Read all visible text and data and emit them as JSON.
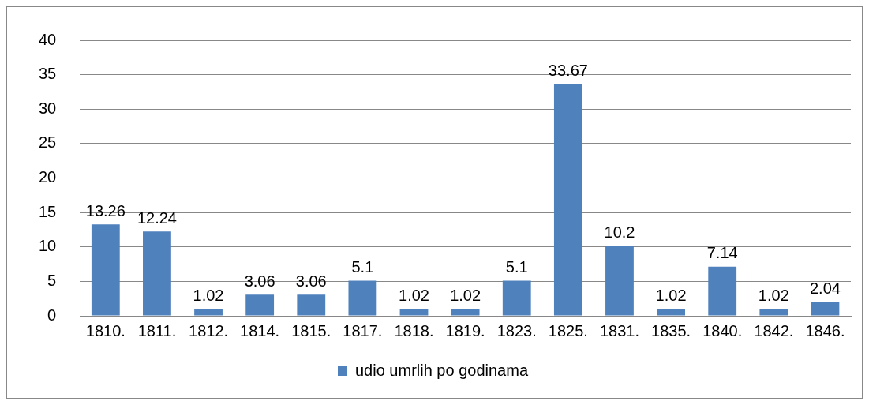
{
  "chart_data": {
    "type": "bar",
    "categories": [
      "1810.",
      "1811.",
      "1812.",
      "1814.",
      "1815.",
      "1817.",
      "1818.",
      "1819.",
      "1823.",
      "1825.",
      "1831.",
      "1835.",
      "1840.",
      "1842.",
      "1846."
    ],
    "series": [
      {
        "name": "udio umrlih po godinama",
        "color": "#4f81bd",
        "values": [
          13.26,
          12.24,
          1.02,
          3.06,
          3.06,
          5.1,
          1.02,
          1.02,
          5.1,
          33.67,
          10.2,
          1.02,
          7.14,
          1.02,
          2.04
        ]
      }
    ],
    "ylim": [
      0,
      40
    ],
    "yticks": [
      0,
      5,
      10,
      15,
      20,
      25,
      30,
      35,
      40
    ],
    "grid": "y",
    "legend": "bottom",
    "data_labels": true
  }
}
